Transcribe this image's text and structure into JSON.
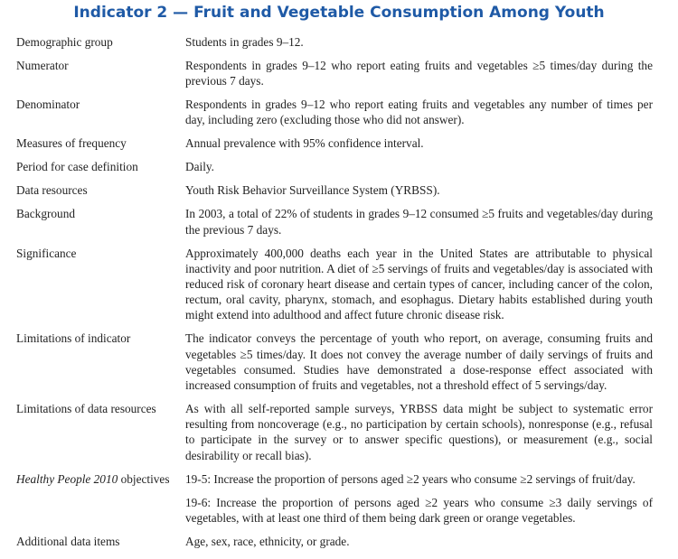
{
  "title": "Indicator 2 — Fruit and Vegetable Consumption Among Youth",
  "title_color": "#1f5aa6",
  "rows": [
    {
      "label": "Demographic group",
      "values": [
        "Students in grades 9–12."
      ]
    },
    {
      "label": "Numerator",
      "values": [
        "Respondents in grades 9–12 who report eating fruits and vegetables ≥5 times/day during the previous 7 days."
      ]
    },
    {
      "label": "Denominator",
      "values": [
        "Respondents in grades 9–12 who report eating fruits and vegetables any number of times per day, including zero (excluding those who did not answer)."
      ]
    },
    {
      "label": "Measures of frequency",
      "values": [
        "Annual prevalence with 95% confidence interval."
      ]
    },
    {
      "label": "Period for case definition",
      "values": [
        "Daily."
      ]
    },
    {
      "label": "Data resources",
      "values": [
        "Youth Risk Behavior Surveillance System (YRBSS)."
      ]
    },
    {
      "label": "Background",
      "values": [
        "In 2003, a total of 22% of students in grades 9–12 consumed ≥5 fruits and vegetables/day during the previous 7 days."
      ]
    },
    {
      "label": "Significance",
      "values": [
        "Approximately 400,000 deaths each year in the United States are attributable to physical inactivity and poor nutrition. A diet of ≥5 servings of fruits and vegetables/day is associated with reduced risk of coronary heart disease and certain types of cancer, including cancer of the colon, rectum, oral cavity, pharynx, stomach, and esophagus. Dietary habits established during youth might extend into adulthood and affect future chronic disease risk."
      ]
    },
    {
      "label": "Limitations of indicator",
      "values": [
        "The indicator conveys the percentage of youth who report, on average, consuming fruits and vegetables ≥5 times/day. It does not convey the average number of daily servings of fruits and vegetables consumed. Studies have demonstrated a dose-response effect associated with increased consumption of fruits and vegetables, not a threshold effect of 5 servings/day."
      ]
    },
    {
      "label": "Limitations of data resources",
      "values": [
        "As with all self-reported sample surveys, YRBSS data might be subject to systematic error resulting from noncoverage (e.g., no participation by certain schools), nonresponse (e.g., refusal to participate in the survey or to answer specific questions), or measurement (e.g., social desirability or recall bias)."
      ]
    },
    {
      "label_italic": "Healthy People 2010",
      "label": " objectives",
      "values": [
        "19-5: Increase the proportion of persons aged ≥2 years who consume ≥2 servings of fruit/day.",
        "19-6: Increase the proportion of persons aged ≥2 years who consume ≥3 daily servings of vegetables, with at least one third of them being dark green or orange vegetables."
      ]
    },
    {
      "label": "Additional data items",
      "values": [
        "Age, sex, race, ethnicity, or grade."
      ]
    }
  ]
}
